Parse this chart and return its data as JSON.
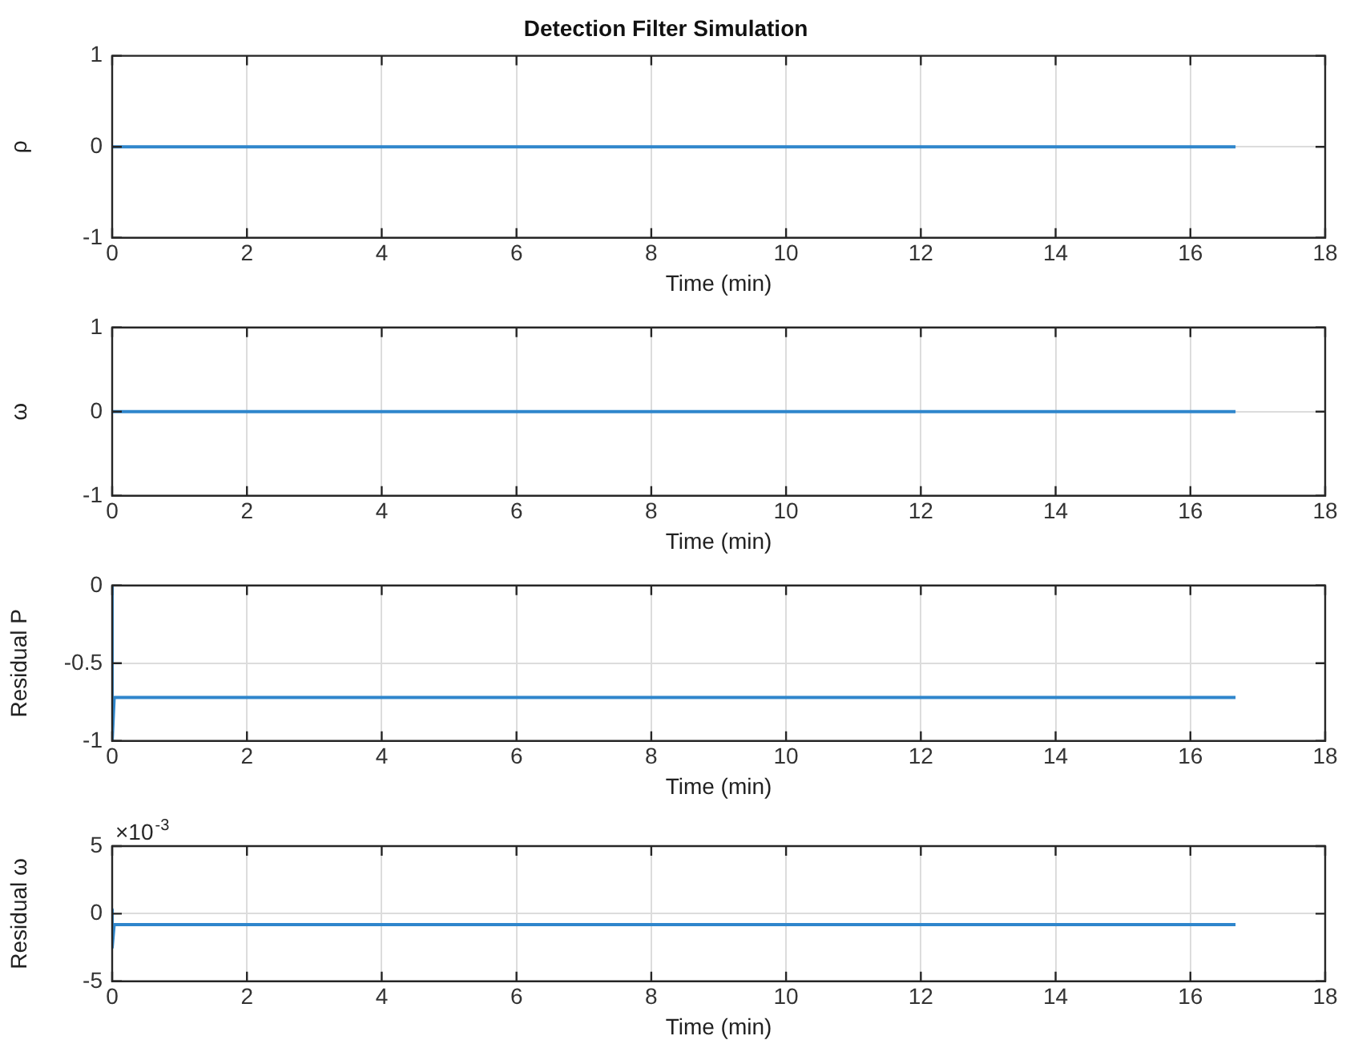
{
  "chart_data": [
    {
      "type": "line",
      "title": "Detection Filter Simulation",
      "xlabel": "Time (min)",
      "ylabel": "ρ",
      "x": [
        0,
        16.67
      ],
      "values": [
        0,
        0
      ],
      "color": "#2f86cc",
      "xlim": [
        0,
        18
      ],
      "xticks": [
        0,
        2,
        4,
        6,
        8,
        10,
        12,
        14,
        16,
        18
      ],
      "ylim": [
        -1,
        1
      ],
      "yticks": [
        -1,
        0,
        1
      ],
      "grid": true
    },
    {
      "type": "line",
      "xlabel": "Time (min)",
      "ylabel": "ω",
      "x": [
        0,
        16.67
      ],
      "values": [
        0,
        0
      ],
      "color": "#2f86cc",
      "xlim": [
        0,
        18
      ],
      "xticks": [
        0,
        2,
        4,
        6,
        8,
        10,
        12,
        14,
        16,
        18
      ],
      "ylim": [
        -1,
        1
      ],
      "yticks": [
        -1,
        0,
        1
      ],
      "grid": true
    },
    {
      "type": "line",
      "xlabel": "Time (min)",
      "ylabel": "Residual P",
      "x": [
        0,
        0,
        0.03,
        16.67
      ],
      "values": [
        0,
        -1,
        -0.72,
        -0.72
      ],
      "color": "#2f86cc",
      "xlim": [
        0,
        18
      ],
      "xticks": [
        0,
        2,
        4,
        6,
        8,
        10,
        12,
        14,
        16,
        18
      ],
      "ylim": [
        -1,
        0
      ],
      "yticks": [
        -1,
        -0.5,
        0
      ],
      "grid": true
    },
    {
      "type": "line",
      "xlabel": "Time (min)",
      "ylabel": "Residual ω",
      "x": [
        0,
        0,
        0.03,
        16.67
      ],
      "values": [
        0.3,
        -2.5,
        -0.8,
        -0.8
      ],
      "color": "#2f86cc",
      "xlim": [
        0,
        18
      ],
      "xticks": [
        0,
        2,
        4,
        6,
        8,
        10,
        12,
        14,
        16,
        18
      ],
      "ylim": [
        -5,
        5
      ],
      "yticks": [
        -5,
        0,
        5
      ],
      "grid": true,
      "annotations": [
        "×10$^{-3}$"
      ]
    }
  ]
}
